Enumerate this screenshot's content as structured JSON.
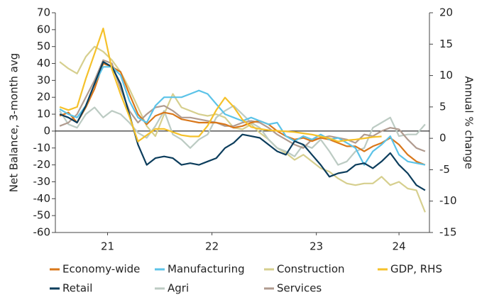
{
  "chart_data": {
    "type": "line",
    "y_label": "Net Balance, 3-month avg",
    "y2_label": "Annual % change",
    "x": [
      0,
      1,
      2,
      3,
      4,
      5,
      6,
      7,
      8,
      9,
      10,
      11,
      12,
      13,
      14,
      15,
      16,
      17,
      18,
      19,
      20,
      21,
      22,
      23,
      24,
      25,
      26,
      27,
      28,
      29,
      30,
      31,
      32,
      33,
      34,
      35,
      36,
      37,
      38,
      39,
      40,
      41,
      42
    ],
    "xlim": [
      -0.5,
      42.5
    ],
    "xticks": [
      {
        "value": 5.5,
        "label": "21"
      },
      {
        "value": 17.5,
        "label": "22"
      },
      {
        "value": 29.5,
        "label": "23"
      },
      {
        "value": 39,
        "label": "24"
      }
    ],
    "ylim": [
      -60,
      70
    ],
    "yticks": [
      -60,
      -50,
      -40,
      -30,
      -20,
      -10,
      0,
      10,
      20,
      30,
      40,
      50,
      60,
      70
    ],
    "y2lim": [
      -15,
      20
    ],
    "y2ticks": [
      -15,
      -10,
      -5,
      0,
      5,
      10,
      15,
      20
    ],
    "zero_line": true,
    "legend": "bottom",
    "series": [
      {
        "name": "Economy-wide",
        "color": "#d9771a",
        "values": [
          9,
          11,
          5,
          14,
          25,
          40,
          38,
          35,
          22,
          10,
          4,
          9,
          11,
          10,
          7,
          6,
          5,
          5,
          5,
          4,
          2,
          3,
          5,
          6,
          4,
          0,
          -3,
          -5,
          -4,
          -6,
          -4,
          -5,
          -7,
          -9,
          -9,
          -12,
          -9,
          -7,
          -4,
          -8,
          -14,
          -18,
          -20
        ]
      },
      {
        "name": "Manufacturing",
        "color": "#5cc3e8",
        "values": [
          13,
          10,
          8,
          15,
          28,
          38,
          38,
          33,
          18,
          8,
          5,
          15,
          20,
          20,
          20,
          22,
          24,
          22,
          16,
          10,
          8,
          6,
          8,
          6,
          4,
          5,
          -3,
          -6,
          -3,
          -5,
          -2,
          -5,
          -4,
          -7,
          -10,
          -20,
          -12,
          -8,
          -3,
          -14,
          -18,
          -19,
          -20
        ]
      },
      {
        "name": "Construction",
        "color": "#d6cf8e",
        "values": [
          41,
          37,
          34,
          44,
          50,
          47,
          42,
          35,
          25,
          14,
          3,
          -3,
          10,
          22,
          14,
          12,
          10,
          9,
          10,
          8,
          2,
          1,
          4,
          -1,
          -5,
          -10,
          -13,
          -17,
          -14,
          -18,
          -22,
          -24,
          -28,
          -31,
          -32,
          -31,
          -31,
          -27,
          -32,
          -30,
          -34,
          -35,
          -48
        ]
      },
      {
        "name": "GDP, RHS",
        "color": "#f5c12a",
        "axis": "y2",
        "values": [
          5,
          4.5,
          5,
          9.5,
          13.5,
          17.5,
          11,
          7,
          3.5,
          -0.5,
          0.5,
          1.5,
          1.5,
          1,
          0.5,
          0.3,
          0.3,
          2,
          4.5,
          6.5,
          5,
          3,
          1.8,
          1.5,
          1.3,
          1.2,
          1.1,
          1,
          0.8,
          0.6,
          0.3,
          0,
          -0.5,
          -0.3,
          -0.2,
          0,
          0.2,
          0.3,
          null,
          null,
          null,
          null,
          null
        ]
      },
      {
        "name": "Retail",
        "color": "#0c3d5c",
        "values": [
          10,
          8,
          5,
          15,
          28,
          41,
          38,
          28,
          10,
          -8,
          -20,
          -16,
          -15,
          -16,
          -20,
          -19,
          -20,
          -18,
          -16,
          -10,
          -7,
          -2,
          -3,
          -4,
          -8,
          -12,
          -14,
          -6,
          -8,
          -14,
          -20,
          -27,
          -25,
          -24,
          -20,
          -19,
          -22,
          -18,
          -13,
          -20,
          -25,
          -32,
          -35
        ]
      },
      {
        "name": "Agri",
        "color": "#bccbc3",
        "values": [
          12,
          4,
          2,
          10,
          14,
          8,
          12,
          10,
          5,
          -1,
          -4,
          3,
          12,
          -2,
          -5,
          -10,
          -5,
          -2,
          8,
          12,
          15,
          10,
          5,
          2,
          -5,
          -10,
          -12,
          -15,
          -8,
          -10,
          -5,
          -12,
          -20,
          -18,
          -12,
          -10,
          2,
          5,
          8,
          -3,
          -2,
          -2,
          4
        ]
      },
      {
        "name": "Services",
        "color": "#b09b8f",
        "values": [
          3,
          5,
          10,
          20,
          30,
          42,
          40,
          25,
          12,
          5,
          10,
          14,
          15,
          12,
          8,
          8,
          7,
          6,
          5,
          3,
          3,
          5,
          6,
          5,
          2,
          -2,
          -5,
          -8,
          -10,
          -5,
          -4,
          -3,
          -4,
          -5,
          -7,
          -2,
          -3,
          0,
          2,
          1,
          -5,
          -10,
          -12
        ]
      }
    ]
  }
}
